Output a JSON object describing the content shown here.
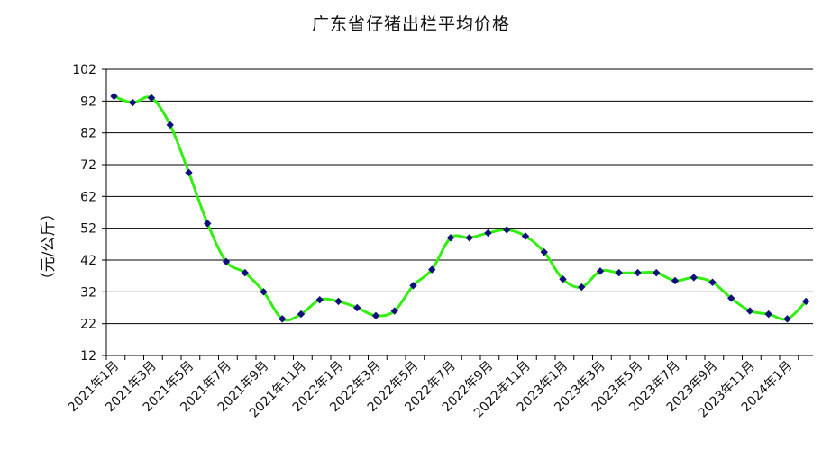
{
  "chart_data": {
    "type": "line",
    "title": "广东省仔猪出栏平均价格",
    "ylabel": "（元/公斤）",
    "xlabel": "",
    "ylim": [
      12,
      102
    ],
    "yticks": [
      12,
      22,
      32,
      42,
      52,
      62,
      72,
      82,
      92,
      102
    ],
    "grid": "horizontal",
    "line_color": "#33ee11",
    "marker_color": "#10107a",
    "x_tick_labels": [
      "2021年1月",
      "2021年3月",
      "2021年5月",
      "2021年7月",
      "2021年9月",
      "2021年11月",
      "2022年1月",
      "2022年3月",
      "2022年5月",
      "2022年7月",
      "2022年9月",
      "2022年11月",
      "2023年1月",
      "2023年3月",
      "2023年5月",
      "2023年7月",
      "2023年9月",
      "2023年11月",
      "2024年1月"
    ],
    "x": [
      "2021年1月",
      "2021年2月",
      "2021年3月",
      "2021年4月",
      "2021年5月",
      "2021年6月",
      "2021年7月",
      "2021年8月",
      "2021年9月",
      "2021年10月",
      "2021年11月",
      "2021年12月",
      "2022年1月",
      "2022年2月",
      "2022年3月",
      "2022年4月",
      "2022年5月",
      "2022年6月",
      "2022年7月",
      "2022年8月",
      "2022年9月",
      "2022年10月",
      "2022年11月",
      "2022年12月",
      "2023年1月",
      "2023年2月",
      "2023年3月",
      "2023年4月",
      "2023年5月",
      "2023年6月",
      "2023年7月",
      "2023年8月",
      "2023年9月",
      "2023年10月",
      "2023年11月",
      "2023年12月",
      "2024年1月",
      "2024年2月"
    ],
    "series": [
      {
        "values": [
          93.5,
          91.5,
          93.0,
          84.5,
          69.5,
          53.5,
          41.5,
          38.0,
          32.0,
          23.5,
          25.0,
          29.5,
          29.0,
          27.0,
          24.5,
          26.0,
          34.0,
          39.0,
          49.0,
          49.0,
          50.5,
          51.5,
          49.5,
          44.5,
          36.0,
          33.5,
          38.5,
          38.0,
          38.0,
          38.0,
          35.5,
          36.5,
          35.0,
          30.0,
          26.0,
          25.0,
          23.5,
          29.0
        ]
      }
    ]
  }
}
